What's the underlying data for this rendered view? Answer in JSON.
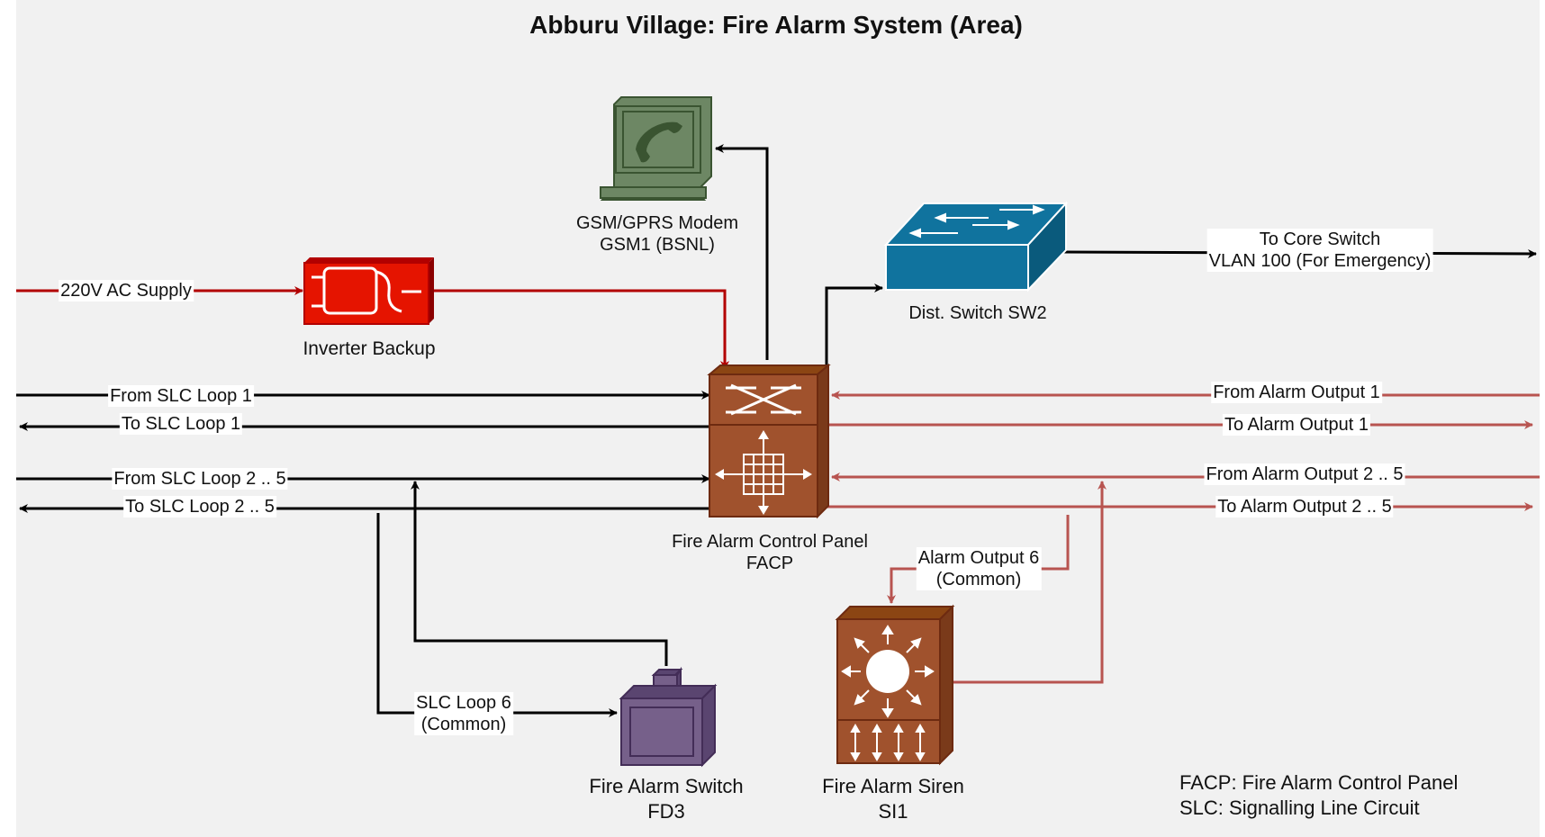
{
  "title": "Abburu Village: Fire Alarm System (Area)",
  "nodes": {
    "gsm": {
      "line1": "GSM/GPRS Modem",
      "line2": "GSM1 (BSNL)",
      "icon": "modem-phone-icon",
      "color": "#6d8764"
    },
    "switch": {
      "line1": "Dist. Switch SW2",
      "icon": "network-switch-icon",
      "color": "#10739e"
    },
    "inverter": {
      "line1": "Inverter Backup",
      "icon": "inverter-icon",
      "color": "#e51400"
    },
    "facp": {
      "line1": "Fire Alarm Control Panel",
      "line2": "FACP",
      "icon": "control-panel-icon",
      "color": "#a0522d"
    },
    "fa_switch": {
      "line1": "Fire Alarm Switch",
      "line2": "FD3",
      "icon": "alarm-switch-icon",
      "color": "#76608a"
    },
    "siren": {
      "line1": "Fire Alarm Siren",
      "line2": "SI1",
      "icon": "siren-icon",
      "color": "#a0522d"
    }
  },
  "edges": {
    "ac_supply": "220V AC Supply",
    "core_switch_1": "To Core Switch",
    "core_switch_2": "VLAN 100 (For Emergency)",
    "from_slc1": "From SLC Loop 1",
    "to_slc1": "To SLC Loop 1",
    "from_slc25": "From SLC Loop 2 .. 5",
    "to_slc25": "To SLC Loop 2 .. 5",
    "from_ao1": "From Alarm Output 1",
    "to_ao1": "To Alarm Output 1",
    "from_ao25": "From Alarm Output 2 .. 5",
    "to_ao25": "To Alarm Output 2 .. 5",
    "ao6_1": "Alarm Output 6",
    "ao6_2": "(Common)",
    "slc6_1": "SLC Loop 6",
    "slc6_2": "(Common)"
  },
  "legend": {
    "line1": "FACP: Fire Alarm Control Panel",
    "line2": "SLC: Signalling Line Circuit"
  },
  "colors": {
    "black_line": "#000000",
    "red_line": "#b20000",
    "pink_line": "#b85450"
  }
}
